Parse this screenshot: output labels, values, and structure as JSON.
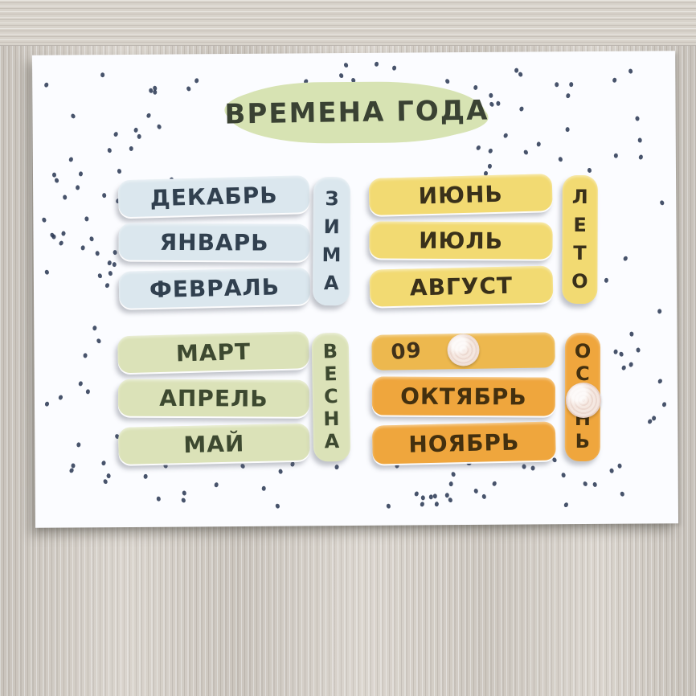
{
  "title": "ВРЕМЕНА ГОДА",
  "seasons": {
    "winter": {
      "label": "ЗИМА",
      "months": [
        "ДЕКАБРЬ",
        "ЯНВАРЬ",
        "ФЕВРАЛЬ"
      ]
    },
    "spring": {
      "label": "ВЕСНА",
      "months": [
        "МАРТ",
        "АПРЕЛЬ",
        "МАЙ"
      ]
    },
    "summer": {
      "label": "ЛЕТО",
      "months": [
        "ИЮНЬ",
        "ИЮЛЬ",
        "АВГУСТ"
      ]
    },
    "autumn": {
      "label": "ОСЕНЬ",
      "months": [
        "ОКТЯБРЬ",
        "НОЯБРЬ"
      ],
      "september_base_number": "09"
    }
  },
  "colors": {
    "board": "#fbfcff",
    "dot": "#2d3b56",
    "title_bg": "#d7e3b3",
    "winter_card": "#dbe7ee",
    "spring_card": "#dbe2b8",
    "summer_card": "#f2da72",
    "autumn_card": "#efa63d",
    "autumn_base": "#edb84e",
    "velcro": "#f5e8e1"
  }
}
